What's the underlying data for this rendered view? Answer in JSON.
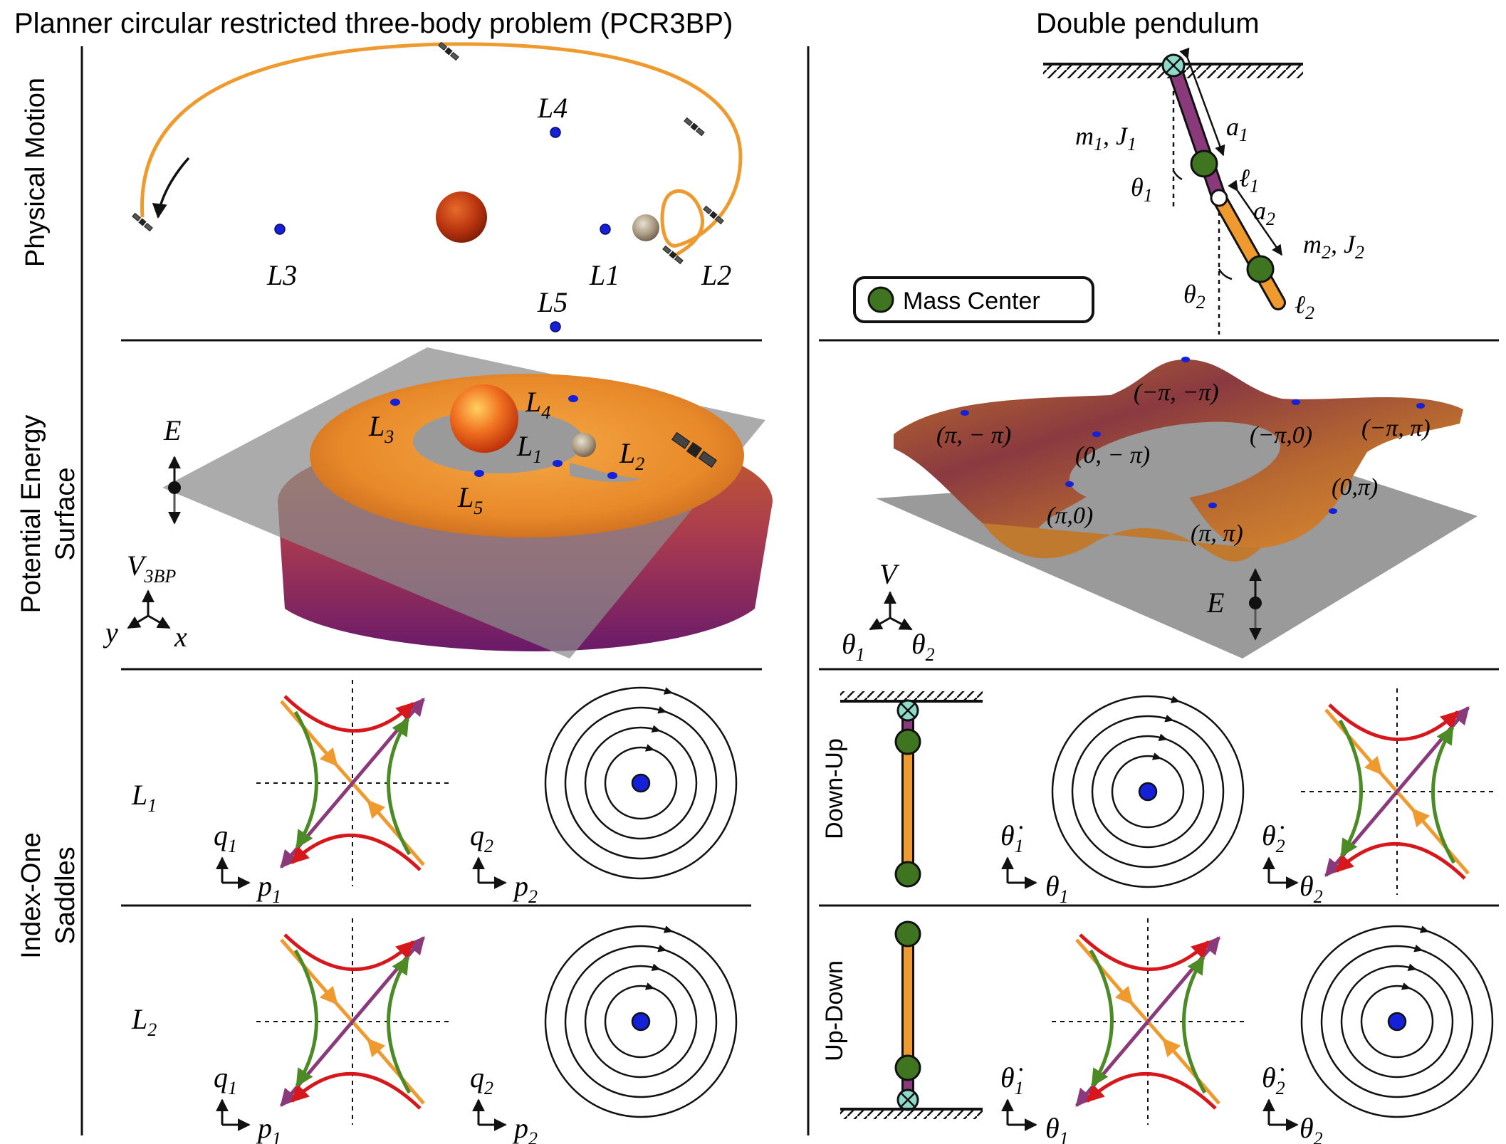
{
  "titles": {
    "left": "Planner circular restricted three-body problem (PCR3BP)",
    "right": "Double pendulum"
  },
  "row_labels": {
    "physical": "Physical Motion",
    "pes_line1": "Potential Energy",
    "pes_line2": "Surface",
    "saddle_line1": "Index-One",
    "saddle_line2": "Saddles"
  },
  "pcr3bp": {
    "lagrange_points": {
      "l1": "L1",
      "l2": "L2",
      "l3": "L3",
      "l4": "L4",
      "l5": "L5"
    },
    "pes": {
      "energy": "E",
      "potential": "V",
      "potential_sub": "3BP",
      "axis_x": "x",
      "axis_y": "y",
      "points": [
        {
          "base": "L",
          "sub": "3"
        },
        {
          "base": "L",
          "sub": "4"
        },
        {
          "base": "L",
          "sub": "1"
        },
        {
          "base": "L",
          "sub": "2"
        },
        {
          "base": "L",
          "sub": "5"
        }
      ]
    },
    "saddles": [
      {
        "base": "L",
        "sub": "1",
        "q": "q",
        "p": "p",
        "i": "1",
        "j": "2"
      },
      {
        "base": "L",
        "sub": "2",
        "q": "q",
        "p": "p",
        "i": "1",
        "j": "2"
      }
    ]
  },
  "pendulum": {
    "m1": "m",
    "m1_sub": "1",
    "j1": "J",
    "j1_sub": "1",
    "m2": "m",
    "m2_sub": "2",
    "j2": "J",
    "j2_sub": "2",
    "a1": "a",
    "a1_sub": "1",
    "a2": "a",
    "a2_sub": "2",
    "l1": "ℓ",
    "l1_sub": "1",
    "l2": "ℓ",
    "l2_sub": "2",
    "theta1": "θ",
    "theta1_sub": "1",
    "theta2": "θ",
    "theta2_sub": "2",
    "sep": ", ",
    "legend": "Mass Center",
    "pes": {
      "energy": "E",
      "potential": "V",
      "axis1": "θ",
      "axis1_sub": "1",
      "axis2": "θ",
      "axis2_sub": "2",
      "points": [
        "(−π, −π)",
        "(π, − π)",
        "(0, − π)",
        "(−π,0)",
        "(−π, π)",
        "(π,0)",
        "(0,π)",
        "(π, π)"
      ]
    },
    "saddles": [
      {
        "label": "Down-Up"
      },
      {
        "label": "Up-Down"
      }
    ],
    "phase_axes": {
      "dot_theta": "θ̇",
      "theta": "θ",
      "i": "1",
      "j": "2"
    }
  },
  "colors": {
    "orange": "#ef9a2e",
    "purple": "#8a3a7a",
    "red": "#d6181c",
    "green": "#4c8a26",
    "blue": "#1421d8",
    "mass_green": "#3f7520",
    "sun": "#b8340f",
    "pivot": "#8fd9c8"
  }
}
